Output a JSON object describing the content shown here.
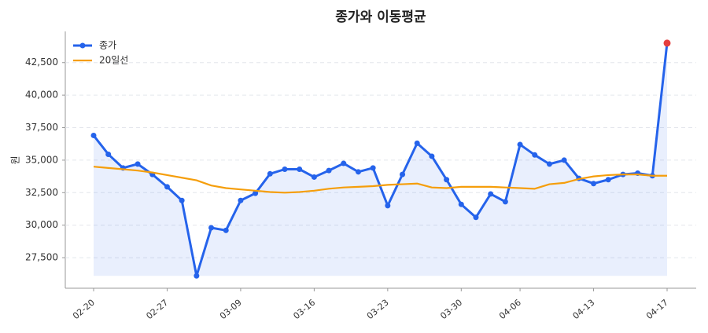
{
  "chart_data": {
    "type": "line",
    "title": "종가와 이동평균",
    "y_label": "원",
    "categories": [
      "02-20",
      null,
      null,
      null,
      null,
      "02-27",
      null,
      null,
      null,
      null,
      "03-09",
      null,
      null,
      null,
      null,
      "03-16",
      null,
      null,
      null,
      null,
      "03-23",
      null,
      null,
      null,
      null,
      "03-30",
      null,
      null,
      null,
      "04-06",
      null,
      null,
      null,
      null,
      "04-13",
      null,
      null,
      null,
      null,
      "04-17"
    ],
    "series": [
      {
        "name": "종가",
        "color": "#2563eb",
        "values": [
          36900,
          35450,
          34400,
          34700,
          33900,
          32950,
          31900,
          26100,
          29800,
          29600,
          31900,
          32450,
          33950,
          34300,
          34300,
          33700,
          34200,
          34750,
          34100,
          34400,
          31500,
          33900,
          36300,
          35300,
          33500,
          31600,
          30600,
          32400,
          31800,
          36200,
          35400,
          34700,
          35000,
          33600,
          33200,
          33500,
          33900,
          34000,
          33800,
          44000
        ]
      },
      {
        "name": "20일선",
        "color": "#f59e0b",
        "values": [
          34500,
          34400,
          34300,
          34200,
          34050,
          33850,
          33650,
          33450,
          33050,
          32850,
          32750,
          32650,
          32550,
          32500,
          32550,
          32650,
          32800,
          32900,
          32950,
          33000,
          33100,
          33150,
          33200,
          32900,
          32850,
          32950,
          32950,
          32950,
          32900,
          32850,
          32800,
          33150,
          33250,
          33550,
          33750,
          33850,
          33900,
          33900,
          33800,
          33800
        ]
      }
    ],
    "last_point_color": "#e53e3e",
    "ylim": [
      25150,
      44900
    ],
    "yticks": [
      {
        "value": 27500,
        "label": "27,500"
      },
      {
        "value": 30000,
        "label": "30,000"
      },
      {
        "value": 32500,
        "label": "32,500"
      },
      {
        "value": 35000,
        "label": "35,000"
      },
      {
        "value": 37500,
        "label": "37,500"
      },
      {
        "value": 40000,
        "label": "40,000"
      },
      {
        "value": 42500,
        "label": "42,500"
      }
    ],
    "grid": true,
    "legend": "upper left"
  }
}
